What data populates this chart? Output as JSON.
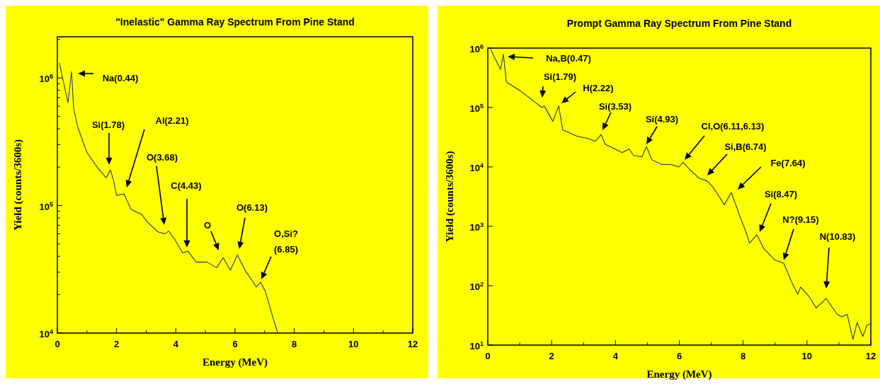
{
  "chart_data": [
    {
      "type": "line",
      "title": "\"Inelastic\" Gamma Ray Spectrum From Pine Stand",
      "xlabel": "Energy (MeV)",
      "ylabel": "Yield (counts/3600s)",
      "log": "y",
      "xlim": [
        0,
        12
      ],
      "ylim": [
        10000,
        2100000
      ],
      "xticks": [
        0,
        {
          "value": 1,
          "label": null
        },
        2,
        {
          "value": 3,
          "label": null
        },
        4,
        {
          "value": 5,
          "label": null
        },
        6,
        {
          "value": 7,
          "label": null
        },
        8,
        {
          "value": 9,
          "label": null
        },
        10,
        {
          "value": 11,
          "label": null
        },
        12
      ],
      "yticks": [
        {
          "value": 10000,
          "label": "10$^{4}$"
        },
        {
          "value": 20000,
          "label": null
        },
        {
          "value": 30000,
          "label": null
        },
        {
          "value": 40000,
          "label": null
        },
        {
          "value": 50000,
          "label": null
        },
        {
          "value": 60000,
          "label": null
        },
        {
          "value": 70000,
          "label": null
        },
        {
          "value": 80000,
          "label": null
        },
        {
          "value": 90000,
          "label": null
        },
        {
          "value": 100000,
          "label": "10$^{5}$"
        },
        {
          "value": 200000,
          "label": null
        },
        {
          "value": 300000,
          "label": null
        },
        {
          "value": 400000,
          "label": null
        },
        {
          "value": 500000,
          "label": null
        },
        {
          "value": 600000,
          "label": null
        },
        {
          "value": 700000,
          "label": null
        },
        {
          "value": 800000,
          "label": null
        },
        {
          "value": 900000,
          "label": null
        },
        {
          "value": 1000000,
          "label": "10$^{6}$"
        },
        {
          "value": 2000000,
          "label": null
        }
      ],
      "series": [
        {
          "color": "#2b3f55",
          "x": [
            0.07,
            0.18,
            0.36,
            0.48,
            0.55,
            0.69,
            1.0,
            1.37,
            1.65,
            1.79,
            1.89,
            2.0,
            2.25,
            2.49,
            2.85,
            3.04,
            3.4,
            3.64,
            3.76,
            3.95,
            4.23,
            4.4,
            4.69,
            5.05,
            5.38,
            5.6,
            5.84,
            6.08,
            6.34,
            6.72,
            6.87,
            7.03,
            7.22,
            7.44
          ],
          "values": [
            1310000,
            990000,
            640000,
            1120000,
            580000,
            410000,
            260000,
            196000,
            165000,
            190000,
            160000,
            120000,
            123000,
            93000,
            85000,
            74000,
            62000,
            60000,
            63000,
            55000,
            42500,
            44000,
            36000,
            36000,
            32500,
            39000,
            31000,
            41000,
            31000,
            23000,
            25000,
            21000,
            14700,
            10000
          ]
        }
      ],
      "annotations": [
        "Na(0.44)",
        "Si(1.78)",
        "Al(2.21)",
        "O(3.68)",
        "C(4.43)",
        "O",
        "O(6.13)",
        "O,Si?\n(6.85)"
      ]
    },
    {
      "type": "line",
      "title": "Prompt Gamma Ray Spectrum From Pine Stand",
      "xlabel": "Energy (MeV)",
      "ylabel": "Yield (counts/3600s)",
      "log": "y",
      "xlim": [
        0,
        12
      ],
      "ylim": [
        10,
        1000000
      ],
      "xticks": [
        0,
        {
          "value": 1,
          "label": null
        },
        2,
        {
          "value": 3,
          "label": null
        },
        4,
        {
          "value": 5,
          "label": null
        },
        6,
        {
          "value": 7,
          "label": null
        },
        8,
        {
          "value": 9,
          "label": null
        },
        10,
        {
          "value": 11,
          "label": null
        },
        12
      ],
      "yticks": [
        {
          "value": 10,
          "label": "10$^{1}$"
        },
        {
          "value": 100,
          "label": "10$^{2}$"
        },
        {
          "value": 1000,
          "label": "10$^{3}$"
        },
        {
          "value": 10000,
          "label": "10$^{4}$"
        },
        {
          "value": 100000,
          "label": "10$^{5}$"
        },
        {
          "value": 1000000,
          "label": "10$^{6}$"
        }
      ],
      "series": [
        {
          "color": "#1f3d33",
          "x": [
            0.09,
            0.22,
            0.4,
            0.49,
            0.58,
            1.02,
            1.46,
            1.69,
            1.77,
            2.04,
            2.22,
            2.35,
            2.79,
            3.15,
            3.37,
            3.55,
            3.68,
            4.21,
            4.43,
            4.57,
            4.83,
            4.97,
            5.14,
            5.45,
            5.72,
            5.99,
            6.12,
            6.34,
            6.61,
            6.87,
            7.05,
            7.23,
            7.41,
            7.63,
            7.85,
            8.12,
            8.2,
            8.43,
            8.65,
            9.0,
            9.27,
            9.53,
            9.71,
            9.8,
            10.07,
            10.29,
            10.6,
            10.95,
            11.09,
            11.26,
            11.44,
            11.57,
            11.75,
            11.88,
            12.0
          ],
          "values": [
            950000,
            680000,
            440000,
            790000,
            270000,
            190000,
            126000,
            100000,
            106000,
            58000,
            106000,
            42000,
            33000,
            30000,
            27000,
            35000,
            24000,
            17400,
            20000,
            15500,
            14800,
            22000,
            13200,
            11000,
            11000,
            10000,
            12000,
            8900,
            6500,
            5800,
            4600,
            3300,
            2300,
            3700,
            1740,
            720,
            520,
            720,
            420,
            270,
            240,
            112,
            72,
            95,
            65,
            42,
            61,
            33,
            30,
            33,
            12.5,
            24,
            14,
            21.6,
            23
          ]
        }
      ],
      "annotations": [
        "Na,B(0.47)",
        "Si(1.79)",
        "H(2.22)",
        "Si(3.53)",
        "Si(4.93)",
        "Cl,O(6.11,6.13)",
        "Si,B(6.74)",
        "Fe(7.64)",
        "Si(8.47)",
        "N?(9.15)",
        "N(10.83)"
      ]
    }
  ]
}
